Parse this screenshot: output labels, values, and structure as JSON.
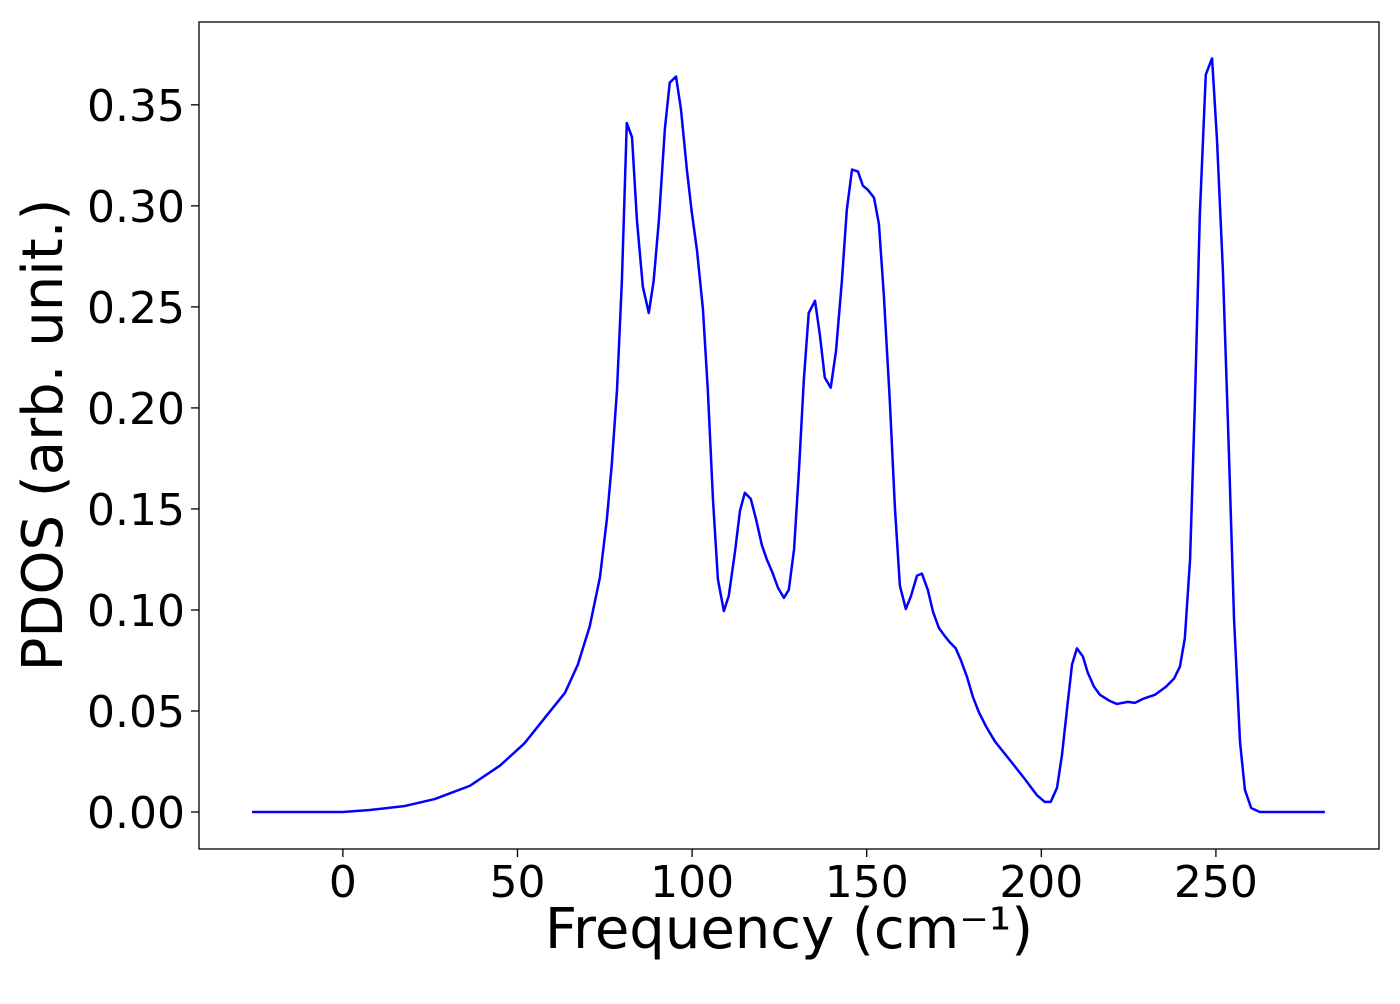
{
  "chart_data": {
    "type": "line",
    "xlabel": "Frequency (cm⁻¹)",
    "ylabel": "PDOS (arb. unit.)",
    "xlim": [
      -41.2,
      296.7
    ],
    "ylim": [
      -0.0183,
      0.391
    ],
    "xticks": [
      0,
      50,
      100,
      150,
      200,
      250
    ],
    "yticks": [
      {
        "value": 0,
        "label": "0.00"
      },
      {
        "value": 0.05,
        "label": "0.05"
      },
      {
        "value": 0.1,
        "label": "0.10"
      },
      {
        "value": 0.15,
        "label": "0.15"
      },
      {
        "value": 0.2,
        "label": "0.20"
      },
      {
        "value": 0.25,
        "label": "0.25"
      },
      {
        "value": 0.3,
        "label": "0.30"
      },
      {
        "value": 0.35,
        "label": "0.35"
      }
    ],
    "x": [
      -26,
      0,
      7.7,
      17.8,
      26.3,
      36.4,
      45,
      52,
      58,
      63.6,
      67.3,
      70.7,
      73.6,
      75.6,
      77,
      78.5,
      79.9,
      81.3,
      82.8,
      84.2,
      85.9,
      87.6,
      89,
      90.5,
      92.2,
      93.6,
      95.4,
      96.8,
      98.5,
      99.9,
      101.4,
      103.1,
      104.5,
      106,
      107.4,
      109.1,
      110.5,
      112.3,
      113.7,
      115.1,
      116.8,
      118.3,
      120,
      121.4,
      122.9,
      124.6,
      126.3,
      127.7,
      129.2,
      130.6,
      132,
      133.4,
      135.2,
      136.6,
      138,
      139.7,
      141.2,
      142.9,
      144.3,
      145.8,
      147.5,
      148.9,
      150.3,
      152.1,
      153.5,
      154.9,
      156.6,
      158.1,
      159.5,
      161.2,
      162.7,
      164.4,
      165.8,
      167.5,
      169,
      170.7,
      172.4,
      173.8,
      175.5,
      177,
      178.7,
      180.4,
      182.1,
      184.1,
      186.7,
      191,
      195.3,
      198.7,
      201,
      202.7,
      204.5,
      205.9,
      207.3,
      208.8,
      210.2,
      211.9,
      213.3,
      215.1,
      216.8,
      219.6,
      221.6,
      224.8,
      226.8,
      229.1,
      232.5,
      235.7,
      238,
      239.7,
      241.1,
      242.6,
      244,
      245.4,
      247.1,
      248.9,
      250.3,
      252,
      253.7,
      255.2,
      256.9,
      258.3,
      260.1,
      262.6,
      281.2
    ],
    "series": [
      {
        "color": "#0000ff",
        "values": [
          0,
          0,
          0.001,
          0.003,
          0.0064,
          0.013,
          0.023,
          0.034,
          0.047,
          0.059,
          0.073,
          0.092,
          0.116,
          0.145,
          0.172,
          0.209,
          0.263,
          0.341,
          0.334,
          0.293,
          0.26,
          0.247,
          0.263,
          0.293,
          0.338,
          0.361,
          0.364,
          0.348,
          0.318,
          0.297,
          0.278,
          0.249,
          0.209,
          0.154,
          0.115,
          0.0995,
          0.107,
          0.129,
          0.149,
          0.158,
          0.155,
          0.145,
          0.132,
          0.125,
          0.119,
          0.111,
          0.106,
          0.11,
          0.13,
          0.169,
          0.214,
          0.247,
          0.253,
          0.236,
          0.215,
          0.21,
          0.228,
          0.263,
          0.298,
          0.318,
          0.317,
          0.31,
          0.308,
          0.304,
          0.291,
          0.256,
          0.204,
          0.15,
          0.112,
          0.1005,
          0.107,
          0.117,
          0.118,
          0.11,
          0.099,
          0.091,
          0.087,
          0.084,
          0.081,
          0.075,
          0.067,
          0.057,
          0.0495,
          0.0426,
          0.035,
          0.0257,
          0.0163,
          0.0084,
          0.005,
          0.005,
          0.012,
          0.028,
          0.05,
          0.073,
          0.081,
          0.077,
          0.069,
          0.062,
          0.058,
          0.055,
          0.0535,
          0.0545,
          0.054,
          0.056,
          0.058,
          0.062,
          0.066,
          0.072,
          0.086,
          0.125,
          0.204,
          0.296,
          0.365,
          0.373,
          0.333,
          0.268,
          0.179,
          0.095,
          0.0347,
          0.011,
          0.002,
          0,
          0
        ]
      }
    ]
  }
}
